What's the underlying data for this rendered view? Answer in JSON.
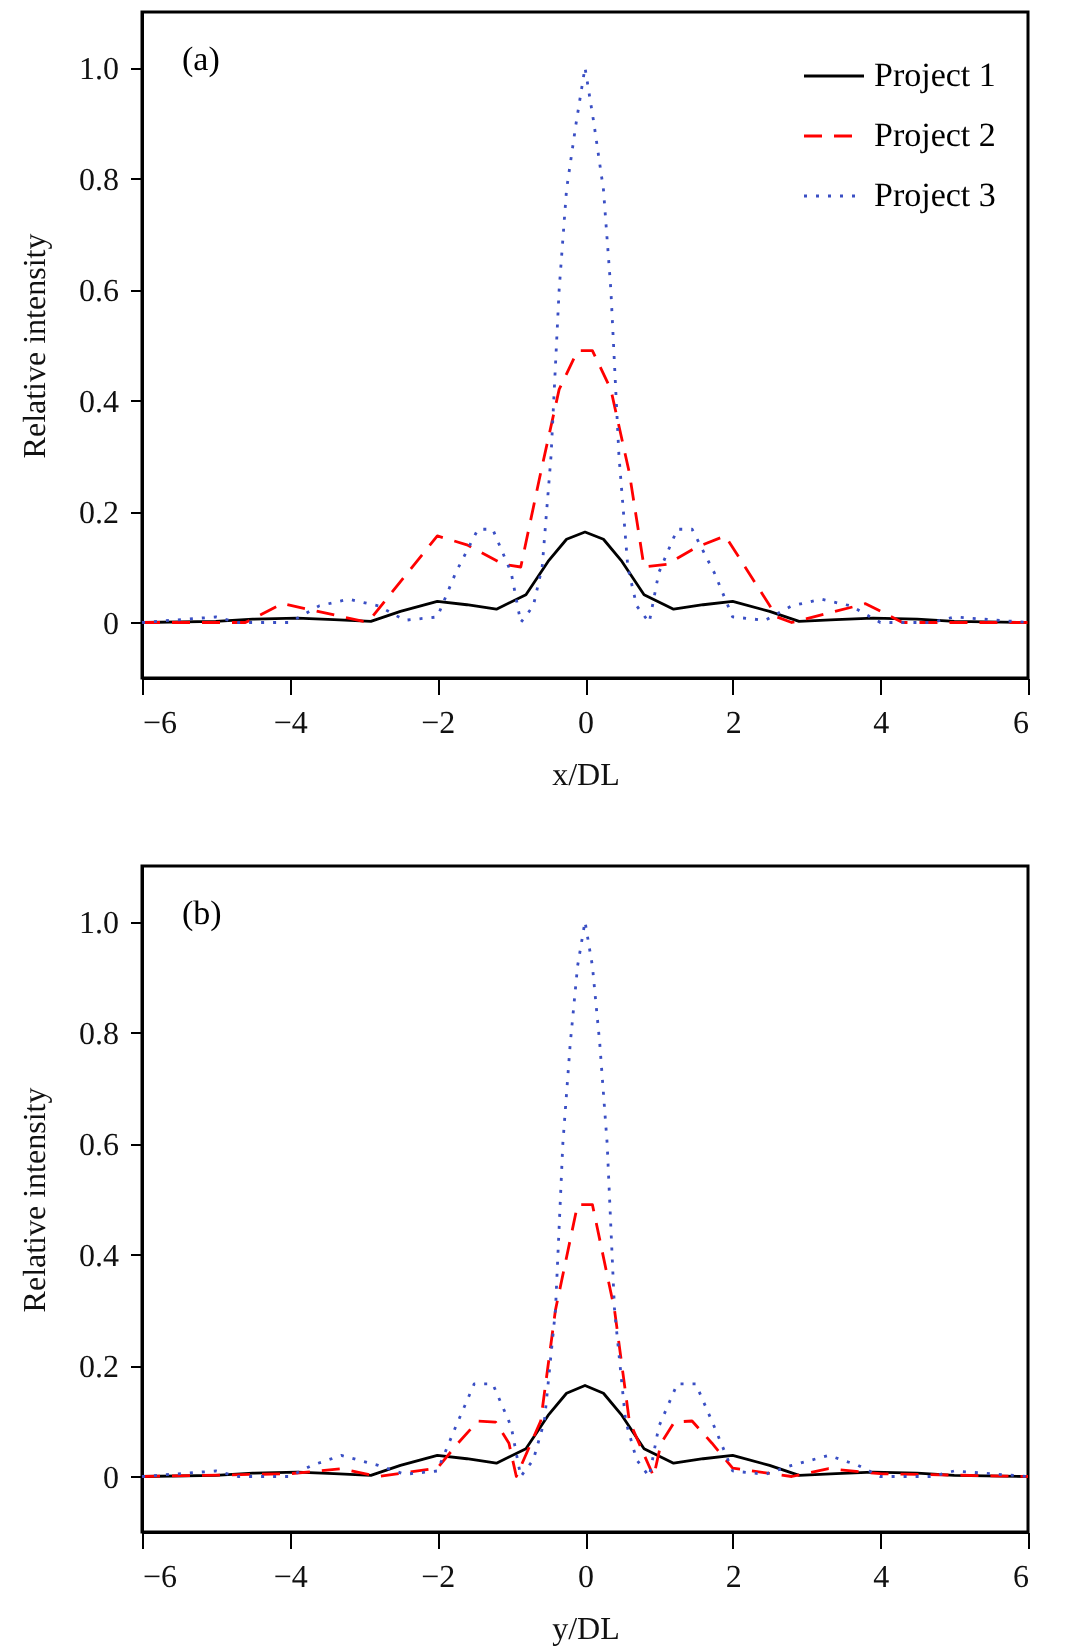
{
  "chart_data": [
    {
      "type": "line",
      "annotations": [
        "(a)"
      ],
      "xlabel": "x/DL",
      "ylabel": "Relative intensity",
      "xlim": [
        -6,
        6
      ],
      "xticks": [
        -6,
        -4,
        -2,
        0,
        2,
        4,
        6
      ],
      "ylim": [
        -0.1,
        1.1
      ],
      "yticks": [
        0,
        0.2,
        0.4,
        0.6,
        0.8,
        {
          "value": 1,
          "label": "1.0"
        }
      ],
      "grid": false,
      "legend": "top right",
      "marker": "none",
      "series": [
        {
          "name": "Project 1",
          "color": "#000000",
          "line_style": "solid",
          "x": [
            -6,
            -5,
            -4.5,
            -3.9,
            -3.4,
            -2.9,
            -2.5,
            -2,
            -1.6,
            -1.2,
            -0.8,
            -0.5,
            -0.25,
            0,
            0.25,
            0.5,
            0.8,
            1.2,
            1.6,
            2,
            2.5,
            2.9,
            3.4,
            3.9,
            4.5,
            5,
            6
          ],
          "values": [
            0,
            0.002,
            0.006,
            0.008,
            0.005,
            0.002,
            0.02,
            0.038,
            0.032,
            0.024,
            0.05,
            0.11,
            0.15,
            0.163,
            0.15,
            0.11,
            0.05,
            0.024,
            0.032,
            0.038,
            0.02,
            0.002,
            0.005,
            0.008,
            0.006,
            0.002,
            0
          ]
        },
        {
          "name": "Project 2",
          "color": "#ff0000",
          "line_style": "dashed",
          "x": [
            -6,
            -4.6,
            -4.1,
            -3.0,
            -2.92,
            -2.0,
            -1.6,
            -1.11,
            -0.87,
            -0.6,
            -0.35,
            -0.1,
            0.1,
            0.35,
            0.6,
            0.8,
            1.11,
            1.5,
            1.9,
            2.6,
            2.8,
            3.8,
            4.3,
            6
          ],
          "values": [
            0,
            0,
            0.034,
            0.002,
            0.004,
            0.156,
            0.14,
            0.105,
            0.1,
            0.27,
            0.42,
            0.49,
            0.49,
            0.42,
            0.27,
            0.1,
            0.105,
            0.135,
            0.156,
            0.01,
            0,
            0.034,
            0,
            0
          ]
        },
        {
          "name": "Project 3",
          "color": "#3a4fc4",
          "line_style": "dotted",
          "x": [
            -6,
            -5,
            -4.7,
            -4,
            -3.6,
            -3.2,
            -2.8,
            -2.44,
            -2.0,
            -1.75,
            -1.45,
            -1.25,
            -1.0,
            -0.87,
            -0.7,
            -0.58,
            -0.46,
            -0.35,
            -0.25,
            -0.12,
            0,
            0.12,
            0.25,
            0.35,
            0.46,
            0.58,
            0.7,
            0.87,
            1.0,
            1.25,
            1.45,
            1.75,
            2.0,
            2.44,
            2.8,
            3.2,
            3.6,
            4,
            4.7,
            5,
            6
          ],
          "values": [
            0,
            0.01,
            0,
            0,
            0.03,
            0.042,
            0.03,
            0.004,
            0.01,
            0.09,
            0.168,
            0.168,
            0.09,
            0,
            0.03,
            0.1,
            0.3,
            0.6,
            0.78,
            0.9,
            1.0,
            0.9,
            0.78,
            0.6,
            0.3,
            0.1,
            0.03,
            0,
            0.09,
            0.168,
            0.168,
            0.09,
            0.01,
            0.004,
            0.03,
            0.042,
            0.03,
            0,
            0,
            0.01,
            0
          ]
        }
      ]
    },
    {
      "type": "line",
      "annotations": [
        "(b)"
      ],
      "xlabel": "y/DL",
      "ylabel": "Relative intensity",
      "xlim": [
        -6,
        6
      ],
      "xticks": [
        -6,
        -4,
        -2,
        0,
        2,
        4,
        6
      ],
      "ylim": [
        -0.1,
        1.1
      ],
      "yticks": [
        0,
        0.2,
        0.4,
        0.6,
        0.8,
        {
          "value": 1,
          "label": "1.0"
        }
      ],
      "grid": false,
      "legend": "top right",
      "marker": "none",
      "series": [
        {
          "name": "Project 1",
          "color": "#000000",
          "line_style": "solid",
          "x": [
            -6,
            -5,
            -4.5,
            -3.9,
            -3.4,
            -2.9,
            -2.5,
            -2,
            -1.6,
            -1.2,
            -0.8,
            -0.5,
            -0.25,
            0,
            0.25,
            0.5,
            0.8,
            1.2,
            1.6,
            2,
            2.5,
            2.9,
            3.4,
            3.9,
            4.5,
            5,
            6
          ],
          "values": [
            0,
            0.002,
            0.006,
            0.008,
            0.005,
            0.002,
            0.02,
            0.038,
            0.032,
            0.024,
            0.05,
            0.11,
            0.15,
            0.164,
            0.15,
            0.11,
            0.05,
            0.024,
            0.032,
            0.038,
            0.02,
            0.002,
            0.005,
            0.008,
            0.006,
            0.002,
            0
          ]
        },
        {
          "name": "Project 2",
          "color": "#ff0000",
          "line_style": "dashed",
          "x": [
            -6,
            -4,
            -3.3,
            -2.8,
            -2.0,
            -1.72,
            -1.45,
            -1.21,
            -1.03,
            -0.93,
            -0.6,
            -0.4,
            -0.1,
            0.1,
            0.4,
            0.6,
            0.93,
            1.03,
            1.21,
            1.45,
            1.72,
            2.0,
            2.8,
            3.3,
            4,
            6
          ],
          "values": [
            0,
            0.005,
            0.014,
            0,
            0.015,
            0.06,
            0.1,
            0.098,
            0.06,
            0,
            0.1,
            0.3,
            0.49,
            0.49,
            0.3,
            0.1,
            0,
            0.06,
            0.098,
            0.1,
            0.06,
            0.015,
            0,
            0.014,
            0.005,
            0
          ]
        },
        {
          "name": "Project 3",
          "color": "#3a4fc4",
          "line_style": "dotted",
          "x": [
            -6,
            -5,
            -4.7,
            -4,
            -3.7,
            -3.3,
            -2.8,
            -2.44,
            -2.0,
            -1.75,
            -1.5,
            -1.25,
            -1.0,
            -0.87,
            -0.7,
            -0.55,
            -0.4,
            -0.3,
            -0.2,
            -0.1,
            0,
            0.1,
            0.2,
            0.3,
            0.4,
            0.55,
            0.7,
            0.87,
            1.0,
            1.25,
            1.5,
            1.75,
            2.0,
            2.44,
            2.8,
            3.3,
            3.7,
            4,
            4.7,
            5,
            6
          ],
          "values": [
            0,
            0.01,
            0,
            0,
            0.02,
            0.038,
            0.02,
            0.004,
            0.01,
            0.09,
            0.167,
            0.167,
            0.09,
            0,
            0.03,
            0.1,
            0.3,
            0.6,
            0.78,
            0.92,
            1.0,
            0.92,
            0.78,
            0.6,
            0.3,
            0.1,
            0.03,
            0,
            0.09,
            0.167,
            0.167,
            0.09,
            0.01,
            0.004,
            0.02,
            0.038,
            0.02,
            0,
            0,
            0.01,
            0
          ]
        }
      ]
    }
  ]
}
